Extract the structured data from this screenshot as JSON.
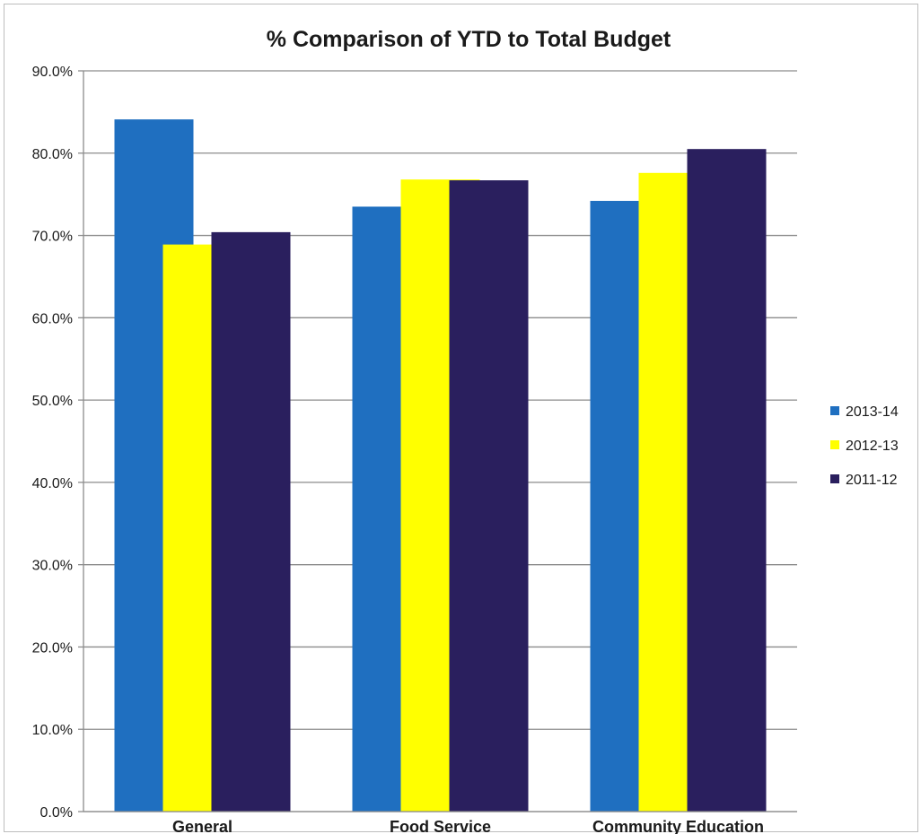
{
  "chart_data": {
    "type": "bar",
    "title": "% Comparison of YTD to Total Budget",
    "xlabel": "",
    "ylabel": "",
    "categories": [
      "General",
      "Food Service",
      "Community Education"
    ],
    "series": [
      {
        "name": "2013-14",
        "color": "#1f6fc0",
        "values": [
          84.1,
          73.5,
          74.2
        ]
      },
      {
        "name": "2012-13",
        "color": "#ffff00",
        "values": [
          68.9,
          76.8,
          77.6
        ]
      },
      {
        "name": "2011-12",
        "color": "#2a1f5e",
        "values": [
          70.4,
          76.7,
          80.5
        ]
      }
    ],
    "ylim": [
      0,
      90
    ],
    "ytick_step": 10,
    "ytick_labels": [
      "0.0%",
      "10.0%",
      "20.0%",
      "30.0%",
      "40.0%",
      "50.0%",
      "60.0%",
      "70.0%",
      "80.0%",
      "90.0%"
    ],
    "grid": true,
    "legend_position": "right"
  }
}
